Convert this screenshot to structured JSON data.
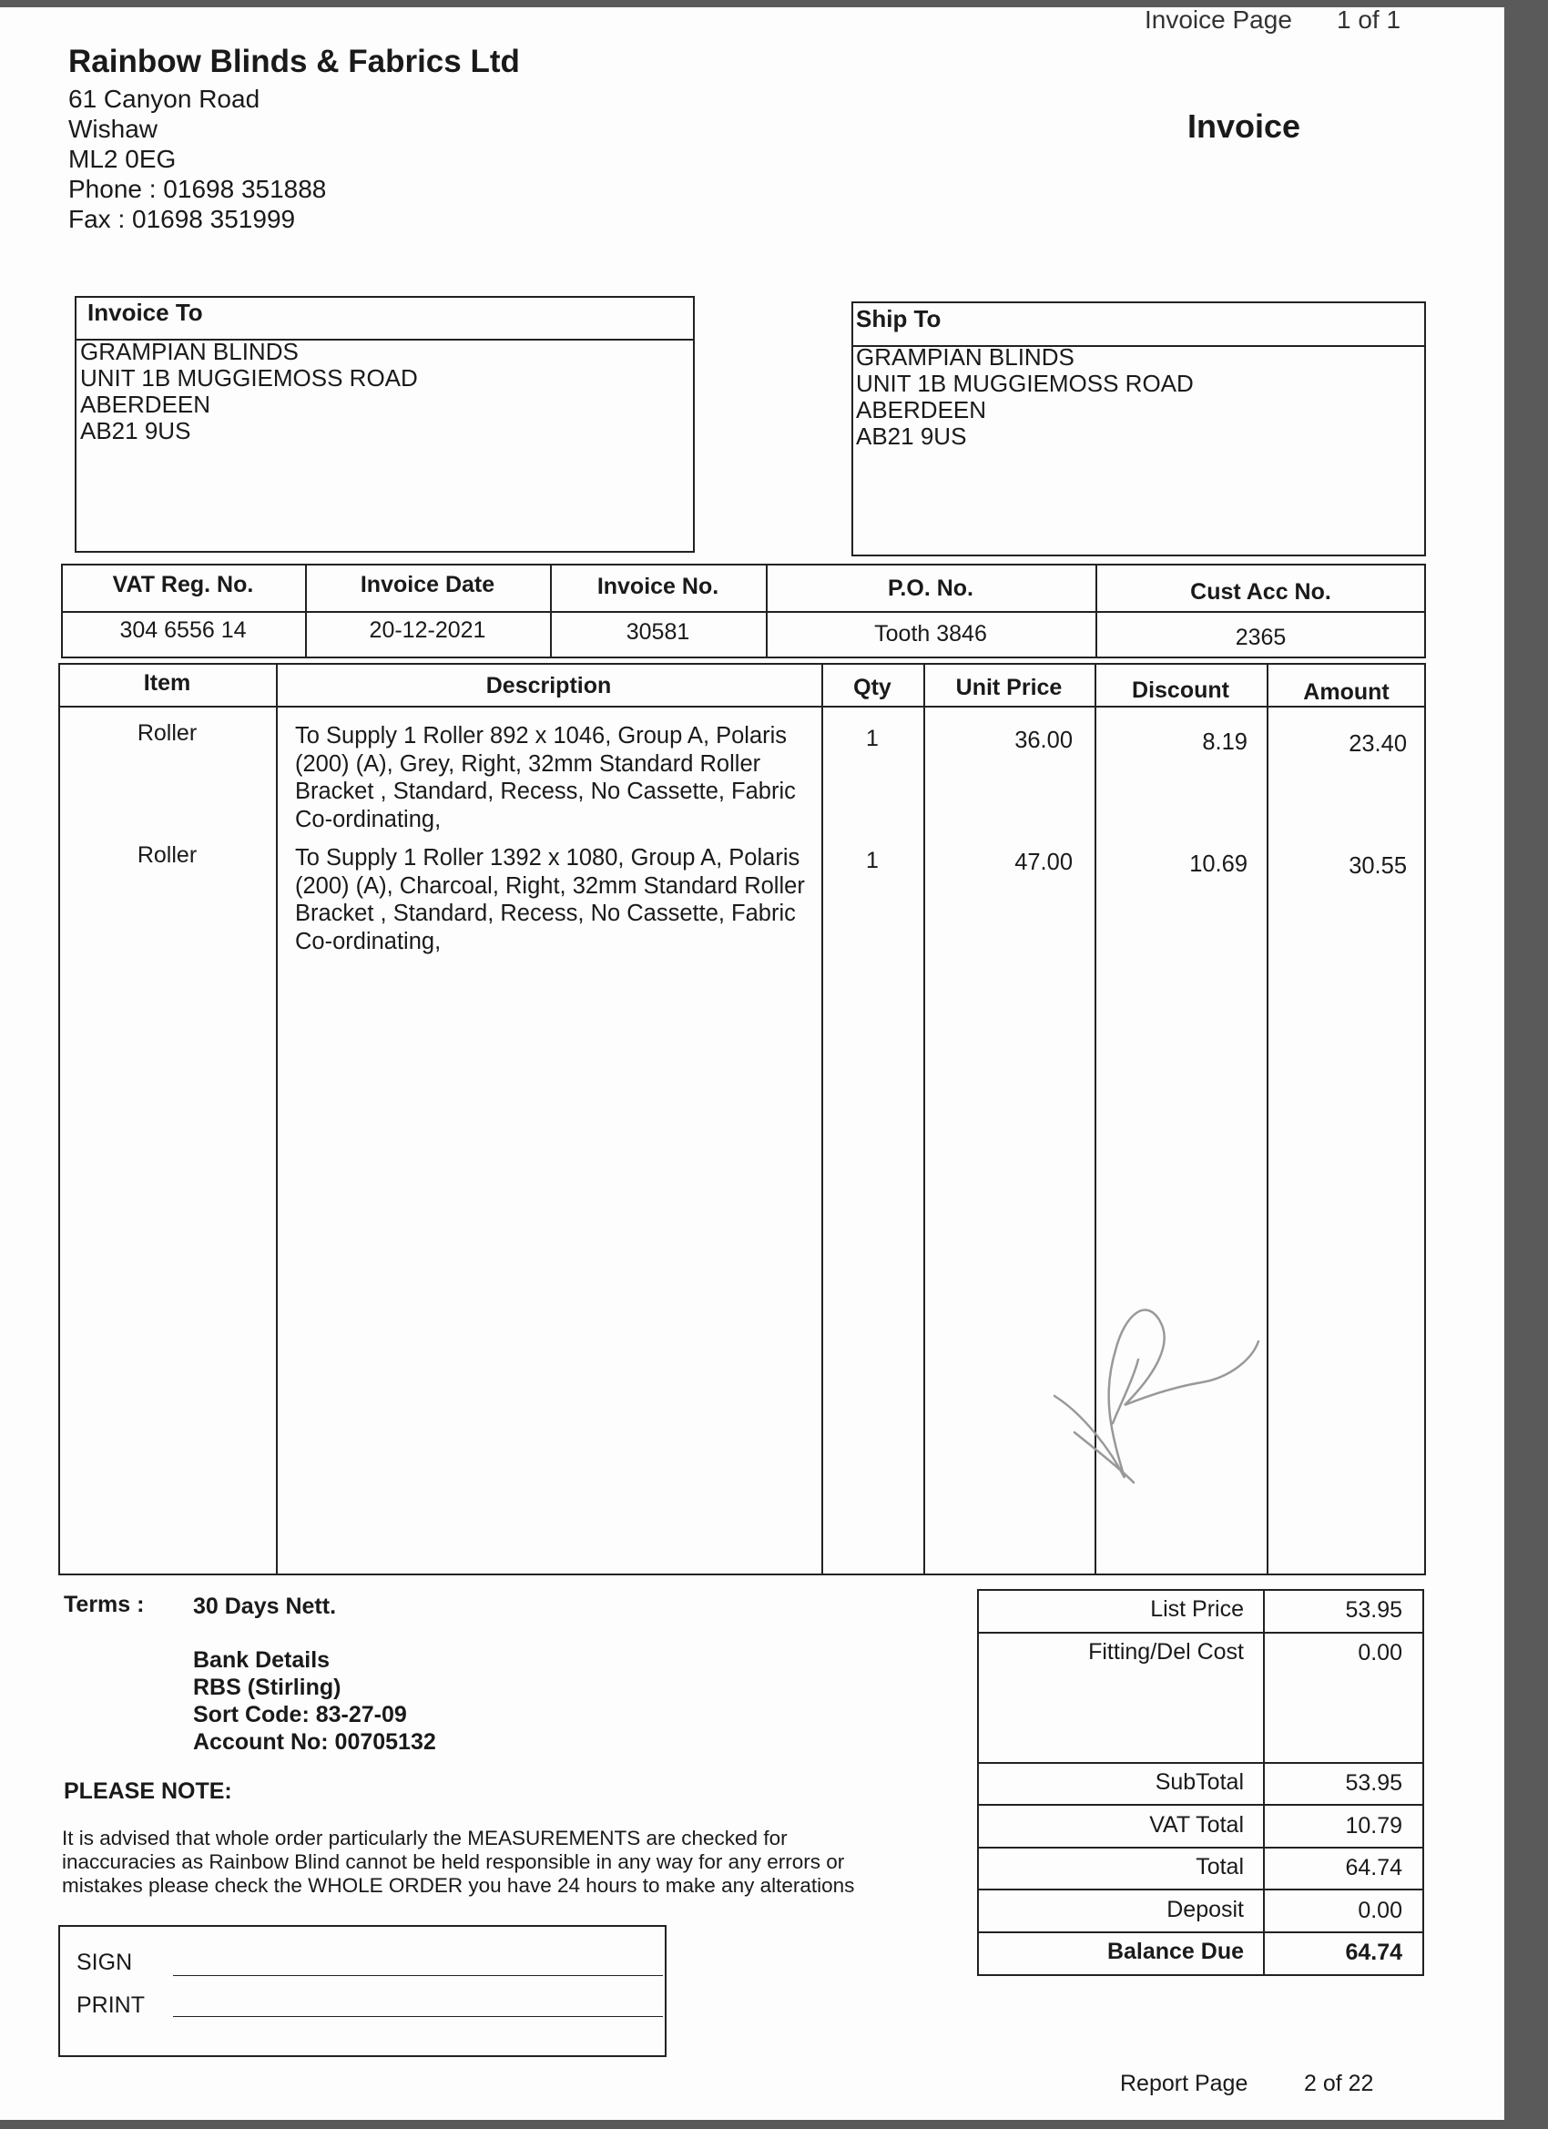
{
  "page_header": {
    "invoice_page_label": "Invoice Page",
    "invoice_page_value": "1 of 1",
    "doc_title": "Invoice"
  },
  "company": {
    "name": "Rainbow Blinds & Fabrics Ltd",
    "address": [
      "61 Canyon Road",
      "Wishaw",
      "ML2 0EG"
    ],
    "phone": "Phone : 01698 351888",
    "fax": "Fax : 01698 351999"
  },
  "invoice_to": {
    "title": "Invoice To",
    "lines": [
      "GRAMPIAN BLINDS",
      "UNIT 1B MUGGIEMOSS ROAD",
      "ABERDEEN",
      "AB21 9US"
    ]
  },
  "ship_to": {
    "title": "Ship To",
    "lines": [
      "GRAMPIAN BLINDS",
      "UNIT 1B MUGGIEMOSS ROAD",
      "ABERDEEN",
      "AB21 9US"
    ]
  },
  "info": {
    "headers": [
      "VAT Reg. No.",
      "Invoice Date",
      "Invoice No.",
      "P.O. No.",
      "Cust Acc No."
    ],
    "values": [
      "304 6556 14",
      "20-12-2021",
      "30581",
      "Tooth 3846",
      "2365"
    ]
  },
  "items": {
    "headers": [
      "Item",
      "Description",
      "Qty",
      "Unit Price",
      "Discount",
      "Amount"
    ],
    "rows": [
      {
        "item": "Roller",
        "description": "To Supply 1 Roller  892 x 1046, Group A, Polaris (200) (A), Grey, Right, 32mm Standard Roller Bracket , Standard, Recess, No Cassette, Fabric Co-ordinating,",
        "qty": "1",
        "unit_price": "36.00",
        "discount": "8.19",
        "amount": "23.40"
      },
      {
        "item": "Roller",
        "description": "To Supply 1 Roller  1392 x 1080, Group A, Polaris (200) (A), Charcoal, Right, 32mm Standard Roller Bracket , Standard, Recess, No Cassette, Fabric Co-ordinating,",
        "qty": "1",
        "unit_price": "47.00",
        "discount": "10.69",
        "amount": "30.55"
      }
    ]
  },
  "terms": {
    "label": "Terms :",
    "value": "30 Days Nett."
  },
  "bank": {
    "lines": [
      "Bank Details",
      "RBS (Stirling)",
      "Sort Code: 83-27-09",
      "Account No: 00705132"
    ]
  },
  "note": {
    "title": "PLEASE NOTE:",
    "lines": [
      "It is advised that whole order particularly the MEASUREMENTS are checked for",
      "inaccuracies as Rainbow Blind cannot be held responsible in any way for any errors or",
      "mistakes please check the WHOLE ORDER you have 24 hours to make any alterations"
    ]
  },
  "sign": {
    "sign_label": "SIGN",
    "print_label": "PRINT"
  },
  "totals": {
    "list_price": {
      "label": "List Price",
      "value": "53.95"
    },
    "fitting": {
      "label": "Fitting/Del Cost",
      "value": "0.00"
    },
    "subtotal": {
      "label": "SubTotal",
      "value": "53.95"
    },
    "vat": {
      "label": "VAT Total",
      "value": "10.79"
    },
    "total": {
      "label": "Total",
      "value": "64.74"
    },
    "deposit": {
      "label": "Deposit",
      "value": "0.00"
    },
    "balance": {
      "label": "Balance Due",
      "value": "64.74"
    }
  },
  "footer": {
    "report_page_label": "Report Page",
    "report_page_value": "2 of 22"
  }
}
